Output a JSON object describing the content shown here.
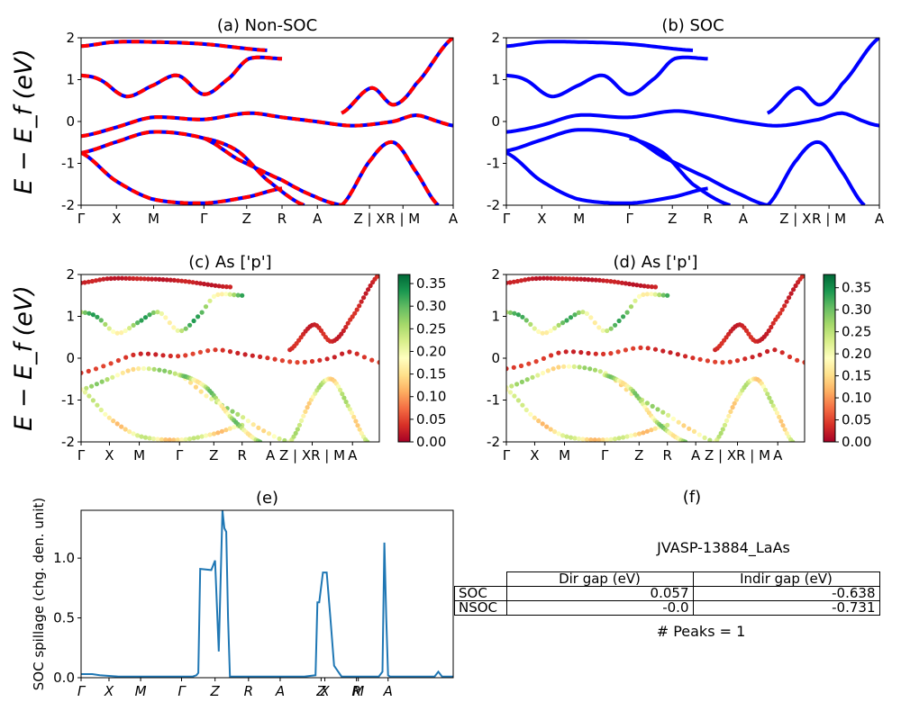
{
  "chart_data": [
    {
      "panel": "a",
      "type": "line",
      "title": "(a) Non-SOC",
      "ylabel": "E − E_f (eV)",
      "ylim": [
        -2,
        2
      ],
      "y_ticks": [
        "-2",
        "-1",
        "0",
        "1",
        "2"
      ],
      "x_tick_labels": [
        "Γ",
        "X",
        "M",
        "Γ",
        "Z",
        "R",
        "A",
        "Z | X",
        "R | M",
        "A"
      ],
      "series_colors": [
        "#0000ff",
        "#ff0000"
      ],
      "line_style": "blue solid band lines overlaid with red dashed band lines",
      "bands": [
        {
          "x": [
            0,
            0.09,
            0.19,
            0.33,
            0.45,
            0.54,
            0.63,
            0.73,
            0.84,
            0.9,
            0.96,
            1
          ],
          "y": [
            -0.35,
            -0.15,
            0.1,
            0.05,
            0.2,
            0.1,
            0.0,
            -0.1,
            0.0,
            0.15,
            0.0,
            -0.1
          ]
        },
        {
          "x": [
            0,
            0.09,
            0.19,
            0.33,
            0.42,
            0.54,
            0.63,
            0.7
          ],
          "y": [
            -0.75,
            -0.5,
            -0.25,
            -0.4,
            -0.9,
            -1.4,
            -1.8,
            -2.0
          ]
        },
        {
          "x": [
            0,
            0.05,
            0.12,
            0.19,
            0.26,
            0.33,
            0.4,
            0.45,
            0.54
          ],
          "y": [
            1.1,
            1.0,
            0.6,
            0.85,
            1.1,
            0.65,
            1.05,
            1.5,
            1.5
          ]
        },
        {
          "x": [
            0,
            0.09,
            0.19,
            0.33,
            0.45,
            0.54
          ],
          "y": [
            -0.75,
            -1.4,
            -1.85,
            -1.95,
            -1.8,
            -1.6
          ]
        },
        {
          "x": [
            0,
            0.09,
            0.19,
            0.33,
            0.5
          ],
          "y": [
            1.8,
            1.9,
            1.9,
            1.85,
            1.7
          ]
        },
        {
          "x": [
            0.33,
            0.42,
            0.5,
            0.6
          ],
          "y": [
            -0.4,
            -0.7,
            -1.4,
            -2.0
          ]
        },
        {
          "x": [
            0.7,
            0.78,
            0.84,
            0.9,
            0.96
          ],
          "y": [
            -2.0,
            -0.9,
            -0.5,
            -1.2,
            -2.0
          ]
        },
        {
          "x": [
            0.7,
            0.78,
            0.84,
            0.9,
            1
          ],
          "y": [
            0.2,
            0.8,
            0.4,
            0.9,
            2.0
          ]
        }
      ]
    },
    {
      "panel": "b",
      "type": "line",
      "title": "(b) SOC",
      "ylim": [
        -2,
        2
      ],
      "y_ticks": [
        "-2",
        "-1",
        "0",
        "1",
        "2"
      ],
      "x_tick_labels": [
        "Γ",
        "X",
        "M",
        "Γ",
        "Z",
        "R",
        "A",
        "Z | X",
        "R | M",
        "A"
      ],
      "series_colors": [
        "#0000ff"
      ],
      "bands": [
        {
          "x": [
            0,
            0.09,
            0.19,
            0.33,
            0.45,
            0.54,
            0.63,
            0.73,
            0.84,
            0.9,
            0.96,
            1
          ],
          "y": [
            -0.25,
            -0.1,
            0.15,
            0.1,
            0.25,
            0.15,
            0.0,
            -0.1,
            0.05,
            0.2,
            0.0,
            -0.1
          ]
        },
        {
          "x": [
            0,
            0.09,
            0.19,
            0.33,
            0.42,
            0.54,
            0.63,
            0.7
          ],
          "y": [
            -0.7,
            -0.45,
            -0.2,
            -0.35,
            -0.85,
            -1.35,
            -1.75,
            -2.0
          ]
        },
        {
          "x": [
            0,
            0.05,
            0.12,
            0.19,
            0.26,
            0.33,
            0.4,
            0.45,
            0.54
          ],
          "y": [
            1.1,
            1.0,
            0.6,
            0.85,
            1.1,
            0.65,
            1.05,
            1.5,
            1.5
          ]
        },
        {
          "x": [
            0,
            0.09,
            0.19,
            0.33,
            0.45,
            0.54
          ],
          "y": [
            -0.75,
            -1.4,
            -1.85,
            -1.95,
            -1.8,
            -1.6
          ]
        },
        {
          "x": [
            0,
            0.09,
            0.19,
            0.33,
            0.5
          ],
          "y": [
            1.8,
            1.9,
            1.9,
            1.85,
            1.7
          ]
        },
        {
          "x": [
            0.33,
            0.42,
            0.5,
            0.6
          ],
          "y": [
            -0.4,
            -0.75,
            -1.5,
            -2.0
          ]
        },
        {
          "x": [
            0.7,
            0.78,
            0.84,
            0.9,
            0.96
          ],
          "y": [
            -2.0,
            -0.9,
            -0.5,
            -1.2,
            -2.0
          ]
        },
        {
          "x": [
            0.7,
            0.78,
            0.84,
            0.9,
            1
          ],
          "y": [
            0.2,
            0.8,
            0.4,
            0.9,
            2.0
          ]
        }
      ]
    },
    {
      "panel": "c",
      "type": "scatter",
      "title": "(c)  As ['p']",
      "ylabel": "E − E_f (eV)",
      "ylim": [
        -2,
        2
      ],
      "y_ticks": [
        "-2",
        "-1",
        "0",
        "1",
        "2"
      ],
      "x_tick_labels": [
        "Γ",
        "X",
        "M",
        "Γ",
        "Z",
        "R",
        "A",
        "Z | XR | M",
        "A"
      ],
      "colorbar": {
        "cmap": "RdYlGn",
        "range": [
          0,
          0.37
        ],
        "ticks": [
          "0.00",
          "0.05",
          "0.10",
          "0.15",
          "0.20",
          "0.25",
          "0.30",
          "0.35"
        ]
      },
      "bands": [
        {
          "w": 0.05,
          "x": [
            0,
            0.09,
            0.19,
            0.33,
            0.45,
            0.54,
            0.63,
            0.73,
            0.84,
            0.9,
            0.96,
            1
          ],
          "y": [
            -0.35,
            -0.15,
            0.1,
            0.05,
            0.2,
            0.1,
            0.0,
            -0.1,
            0.0,
            0.15,
            0.0,
            -0.1
          ]
        },
        {
          "w": 0.28,
          "x": [
            0,
            0.09,
            0.19,
            0.33,
            0.42,
            0.54,
            0.63,
            0.7
          ],
          "y": [
            -0.75,
            -0.5,
            -0.25,
            -0.4,
            -0.9,
            -1.4,
            -1.8,
            -2.0
          ]
        },
        {
          "w": 0.33,
          "x": [
            0,
            0.05,
            0.12,
            0.19,
            0.26,
            0.33,
            0.4,
            0.45,
            0.54
          ],
          "y": [
            1.1,
            1.0,
            0.6,
            0.85,
            1.1,
            0.65,
            1.05,
            1.5,
            1.5
          ]
        },
        {
          "w": 0.24,
          "x": [
            0,
            0.09,
            0.19,
            0.33,
            0.45,
            0.54
          ],
          "y": [
            -0.75,
            -1.4,
            -1.85,
            -1.95,
            -1.8,
            -1.6
          ]
        },
        {
          "w": 0.03,
          "x": [
            0,
            0.09,
            0.19,
            0.33,
            0.5
          ],
          "y": [
            1.8,
            1.9,
            1.9,
            1.85,
            1.7
          ]
        },
        {
          "w": 0.3,
          "x": [
            0.33,
            0.42,
            0.5,
            0.6
          ],
          "y": [
            -0.4,
            -0.7,
            -1.4,
            -2.0
          ]
        },
        {
          "w": 0.26,
          "x": [
            0.7,
            0.78,
            0.84,
            0.9,
            0.96
          ],
          "y": [
            -2.0,
            -0.9,
            -0.5,
            -1.2,
            -2.0
          ]
        },
        {
          "w": 0.04,
          "x": [
            0.7,
            0.78,
            0.84,
            0.9,
            1
          ],
          "y": [
            0.2,
            0.8,
            0.4,
            0.9,
            2.0
          ]
        }
      ]
    },
    {
      "panel": "d",
      "type": "scatter",
      "title": "(d) As ['p']",
      "ylim": [
        -2,
        2
      ],
      "y_ticks": [
        "-2",
        "-1",
        "0",
        "1",
        "2"
      ],
      "x_tick_labels": [
        "Γ",
        "X",
        "M",
        "Γ",
        "Z",
        "R",
        "A",
        "Z | XR | M",
        "A"
      ],
      "colorbar": {
        "cmap": "RdYlGn",
        "range": [
          0,
          0.38
        ],
        "ticks": [
          "0.00",
          "0.05",
          "0.10",
          "0.15",
          "0.20",
          "0.25",
          "0.30",
          "0.35"
        ]
      },
      "bands": [
        {
          "w": 0.05,
          "x": [
            0,
            0.09,
            0.19,
            0.33,
            0.45,
            0.54,
            0.63,
            0.73,
            0.84,
            0.9,
            0.96,
            1
          ],
          "y": [
            -0.25,
            -0.1,
            0.15,
            0.1,
            0.25,
            0.15,
            0.0,
            -0.1,
            0.05,
            0.2,
            0.0,
            -0.1
          ]
        },
        {
          "w": 0.28,
          "x": [
            0,
            0.09,
            0.19,
            0.33,
            0.42,
            0.54,
            0.63,
            0.7
          ],
          "y": [
            -0.7,
            -0.45,
            -0.2,
            -0.35,
            -0.85,
            -1.35,
            -1.75,
            -2.0
          ]
        },
        {
          "w": 0.33,
          "x": [
            0,
            0.05,
            0.12,
            0.19,
            0.26,
            0.33,
            0.4,
            0.45,
            0.54
          ],
          "y": [
            1.1,
            1.0,
            0.6,
            0.85,
            1.1,
            0.65,
            1.05,
            1.5,
            1.5
          ]
        },
        {
          "w": 0.24,
          "x": [
            0,
            0.09,
            0.19,
            0.33,
            0.45,
            0.54
          ],
          "y": [
            -0.75,
            -1.4,
            -1.85,
            -1.95,
            -1.8,
            -1.6
          ]
        },
        {
          "w": 0.03,
          "x": [
            0,
            0.09,
            0.19,
            0.33,
            0.5
          ],
          "y": [
            1.8,
            1.9,
            1.9,
            1.85,
            1.7
          ]
        },
        {
          "w": 0.3,
          "x": [
            0.33,
            0.42,
            0.5,
            0.6
          ],
          "y": [
            -0.4,
            -0.75,
            -1.5,
            -2.0
          ]
        },
        {
          "w": 0.26,
          "x": [
            0.7,
            0.78,
            0.84,
            0.9,
            0.96
          ],
          "y": [
            -2.0,
            -0.9,
            -0.5,
            -1.2,
            -2.0
          ]
        },
        {
          "w": 0.04,
          "x": [
            0.7,
            0.78,
            0.84,
            0.9,
            1
          ],
          "y": [
            0.2,
            0.8,
            0.4,
            0.9,
            2.0
          ]
        }
      ]
    },
    {
      "panel": "e",
      "type": "line",
      "title": "(e)",
      "ylabel": "SOC spillage (chg. den. unit)",
      "ylim": [
        0,
        1.4
      ],
      "y_ticks": [
        "0.0",
        "0.5",
        "1.0"
      ],
      "x_tick_labels": [
        "Γ",
        "X",
        "M",
        "Γ",
        "Z",
        "R",
        "A",
        "Z",
        "X",
        "R",
        "M",
        "A"
      ],
      "series_colors": [
        "#1f77b4"
      ],
      "x": [
        0,
        0.03,
        0.05,
        0.1,
        0.2,
        0.3,
        0.31,
        0.315,
        0.32,
        0.35,
        0.36,
        0.37,
        0.38,
        0.385,
        0.39,
        0.395,
        0.4,
        0.41,
        0.42,
        0.44,
        0.46,
        0.5,
        0.6,
        0.63,
        0.635,
        0.64,
        0.65,
        0.66,
        0.67,
        0.68,
        0.7,
        0.8,
        0.81,
        0.815,
        0.82,
        0.825,
        0.83,
        0.85,
        0.9,
        0.95,
        0.96,
        0.97,
        1
      ],
      "y": [
        0.03,
        0.03,
        0.02,
        0.01,
        0.01,
        0.01,
        0.02,
        0.04,
        0.91,
        0.9,
        0.98,
        0.22,
        1.4,
        1.25,
        1.22,
        0.5,
        0.01,
        0.01,
        0.01,
        0.01,
        0.01,
        0.01,
        0.01,
        0.02,
        0.63,
        0.63,
        0.88,
        0.88,
        0.5,
        0.1,
        0.01,
        0.01,
        0.05,
        1.13,
        0.5,
        0.02,
        0.01,
        0.01,
        0.01,
        0.01,
        0.05,
        0.01,
        0.01
      ]
    },
    {
      "panel": "f",
      "type": "table",
      "title": "(f)",
      "subtitle": "JVASP-13884_LaAs",
      "columns": [
        "Dir gap (eV)",
        "Indir gap (eV)"
      ],
      "rows": [
        {
          "label": "SOC",
          "values": [
            "0.057",
            "-0.638"
          ]
        },
        {
          "label": "NSOC",
          "values": [
            "-0.0",
            "-0.731"
          ]
        }
      ],
      "footer": "# Peaks = 1"
    }
  ]
}
